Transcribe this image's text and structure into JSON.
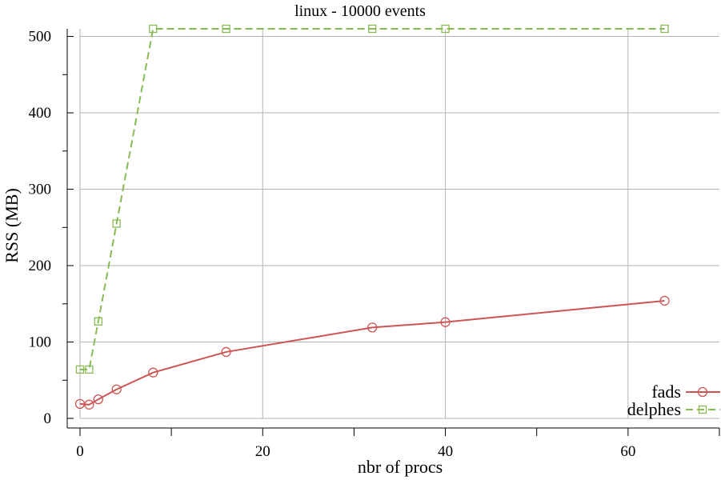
{
  "chart_data": {
    "type": "line",
    "title": "linux - 10000 events",
    "xlabel": "nbr of procs",
    "ylabel": "RSS (MB)",
    "xlim": [
      0,
      70
    ],
    "ylim": [
      0,
      510
    ],
    "xticks": [
      0,
      20,
      40,
      60
    ],
    "yticks": [
      0,
      100,
      200,
      300,
      400,
      500
    ],
    "grid": true,
    "legend_position": "bottom-right",
    "series": [
      {
        "name": "fads",
        "color": "#cc5555",
        "marker": "circle",
        "dash": "solid",
        "x": [
          0,
          1,
          2,
          4,
          8,
          16,
          32,
          40,
          64
        ],
        "y": [
          19,
          18,
          25,
          38,
          60,
          87,
          119,
          126,
          154
        ]
      },
      {
        "name": "delphes",
        "color": "#88bb55",
        "marker": "square",
        "dash": "dashed",
        "x": [
          0,
          1,
          2,
          4,
          8,
          16,
          32,
          40,
          64
        ],
        "y": [
          64,
          64,
          127,
          255,
          510,
          510,
          510,
          510,
          510
        ]
      }
    ]
  }
}
